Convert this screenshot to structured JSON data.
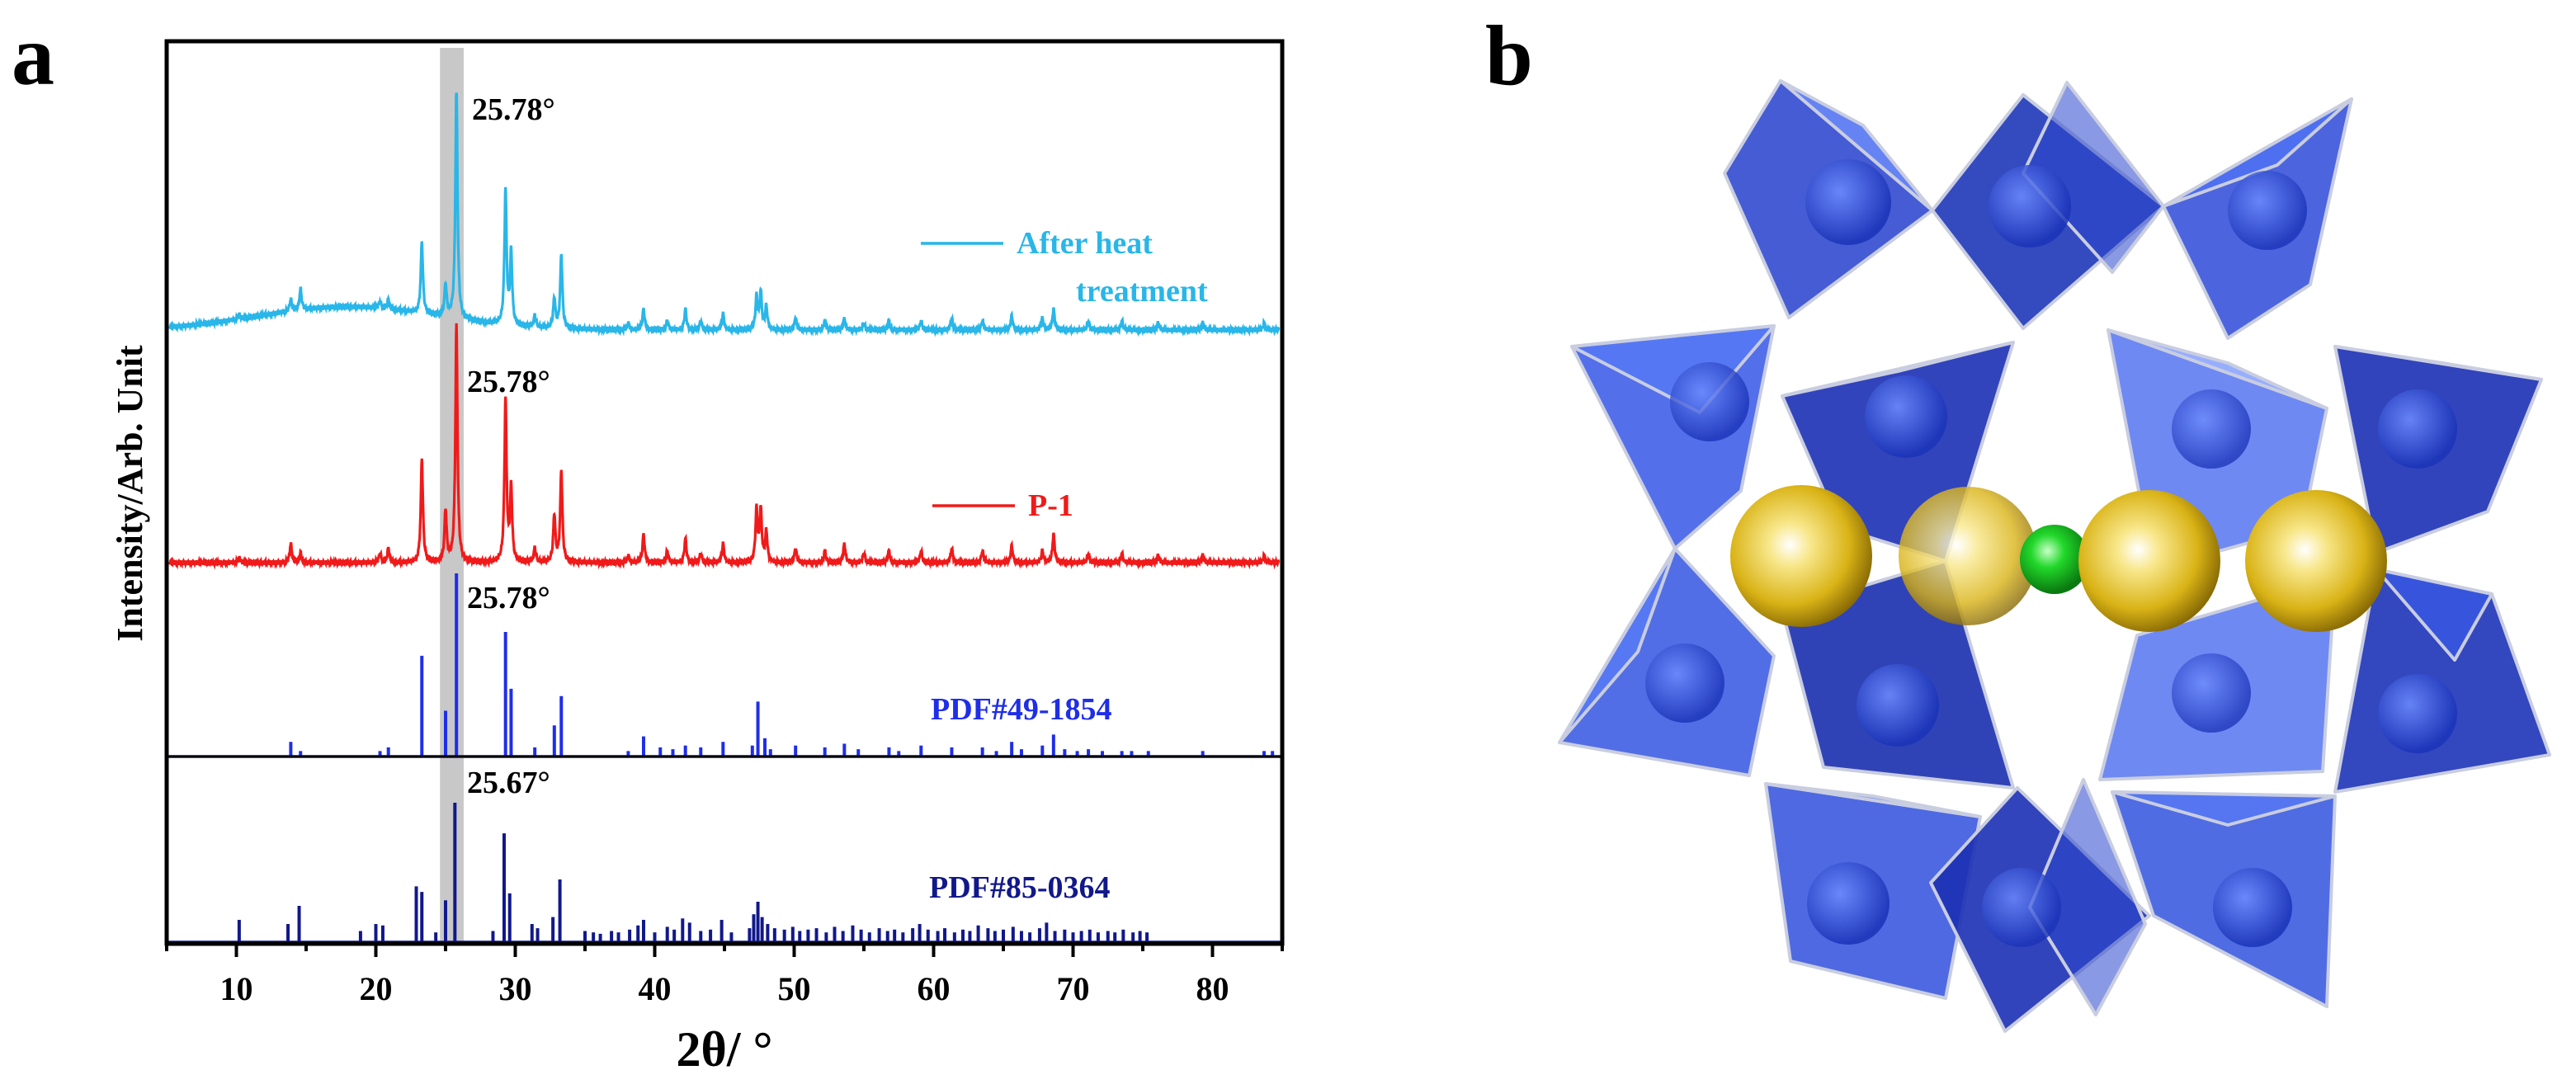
{
  "panel_a_label": "a",
  "panel_b_label": "b",
  "chart_data": {
    "type": "line",
    "title": "",
    "xlabel": "2θ/ °",
    "ylabel": "Intensity/Arb. Unit",
    "xlim": [
      5,
      85
    ],
    "xticks": [
      10,
      20,
      30,
      40,
      50,
      60,
      70,
      80
    ],
    "highlight_band": [
      24.6,
      26.3
    ],
    "series": [
      {
        "name": "After heat treatment",
        "legend_lines": [
          "After heat",
          "treatment"
        ],
        "color": "#29b6e8",
        "kind": "pattern",
        "baseline": 0.1,
        "peak_x": [
          10.2,
          13.9,
          14.6,
          20.3,
          20.9,
          23.3,
          25.0,
          25.78,
          29.3,
          29.7,
          31.4,
          32.8,
          33.3,
          38.1,
          39.2,
          40.9,
          42.2,
          43.3,
          44.9,
          47.3,
          47.6,
          48.0,
          50.1,
          52.2,
          53.6,
          55.0,
          56.8,
          59.1,
          61.3,
          63.5,
          65.6,
          67.8,
          68.6,
          71.1,
          73.5,
          76.1,
          79.3,
          83.7
        ],
        "peak_y": [
          0.02,
          0.05,
          0.09,
          0.03,
          0.04,
          0.31,
          0.14,
          1.0,
          0.58,
          0.31,
          0.05,
          0.13,
          0.32,
          0.03,
          0.09,
          0.04,
          0.09,
          0.04,
          0.07,
          0.14,
          0.16,
          0.1,
          0.05,
          0.04,
          0.05,
          0.03,
          0.04,
          0.04,
          0.05,
          0.04,
          0.06,
          0.05,
          0.09,
          0.04,
          0.04,
          0.03,
          0.03,
          0.03
        ],
        "annotation": "25.78°"
      },
      {
        "name": "P-1",
        "legend_lines": [
          "P-1"
        ],
        "color": "#f01a1a",
        "kind": "pattern",
        "baseline": 0.0,
        "peak_x": [
          10.2,
          13.9,
          14.6,
          20.3,
          20.9,
          23.3,
          25.0,
          25.78,
          29.3,
          29.7,
          31.4,
          32.8,
          33.3,
          38.1,
          39.2,
          40.9,
          42.2,
          43.3,
          44.9,
          47.3,
          47.6,
          48.0,
          50.1,
          52.2,
          53.6,
          55.0,
          56.8,
          59.1,
          61.3,
          63.5,
          65.6,
          67.8,
          68.6,
          71.1,
          73.5,
          76.1,
          79.3,
          83.7
        ],
        "peak_y": [
          0.02,
          0.08,
          0.04,
          0.04,
          0.06,
          0.44,
          0.22,
          1.0,
          0.69,
          0.31,
          0.06,
          0.2,
          0.39,
          0.03,
          0.12,
          0.05,
          0.1,
          0.04,
          0.08,
          0.22,
          0.22,
          0.13,
          0.06,
          0.05,
          0.08,
          0.04,
          0.05,
          0.05,
          0.06,
          0.05,
          0.07,
          0.05,
          0.12,
          0.04,
          0.04,
          0.03,
          0.03,
          0.03
        ],
        "annotation": "25.78°"
      },
      {
        "name": "PDF#49-1854",
        "legend_lines": [
          "PDF#49-1854"
        ],
        "color": "#1f2ee8",
        "kind": "sticks",
        "peak_x": [
          13.9,
          14.6,
          20.3,
          20.9,
          23.3,
          25.0,
          25.78,
          29.3,
          29.7,
          31.4,
          32.8,
          33.3,
          38.1,
          39.2,
          40.4,
          41.3,
          42.2,
          43.3,
          44.9,
          47.0,
          47.4,
          47.9,
          48.3,
          50.1,
          52.2,
          53.6,
          54.6,
          56.8,
          57.5,
          59.1,
          61.3,
          63.5,
          64.5,
          65.6,
          66.3,
          67.8,
          68.6,
          69.4,
          70.3,
          71.1,
          72.1,
          73.5,
          74.2,
          75.4,
          79.3,
          83.7,
          84.3
        ],
        "peak_y": [
          0.08,
          0.03,
          0.03,
          0.05,
          0.55,
          0.25,
          1.0,
          0.68,
          0.37,
          0.05,
          0.17,
          0.33,
          0.03,
          0.11,
          0.05,
          0.04,
          0.06,
          0.05,
          0.08,
          0.06,
          0.3,
          0.1,
          0.04,
          0.06,
          0.05,
          0.07,
          0.04,
          0.05,
          0.03,
          0.06,
          0.05,
          0.05,
          0.03,
          0.08,
          0.04,
          0.06,
          0.12,
          0.04,
          0.03,
          0.04,
          0.03,
          0.03,
          0.03,
          0.03,
          0.03,
          0.03,
          0.03
        ],
        "annotation": "25.78°"
      },
      {
        "name": "PDF#85-0364",
        "legend_lines": [
          "PDF#85-0364"
        ],
        "color": "#11188a",
        "kind": "sticks",
        "peak_x": [
          10.2,
          13.7,
          14.5,
          18.9,
          20.0,
          20.5,
          22.9,
          23.3,
          24.3,
          25.0,
          25.67,
          28.4,
          29.2,
          29.6,
          31.2,
          31.6,
          32.7,
          33.2,
          35.0,
          35.6,
          36.1,
          36.9,
          37.4,
          38.2,
          38.8,
          39.2,
          40.0,
          40.9,
          41.4,
          42.0,
          42.5,
          43.3,
          44.0,
          44.8,
          45.5,
          46.8,
          47.1,
          47.4,
          47.7,
          48.1,
          48.6,
          49.3,
          49.9,
          50.4,
          51.0,
          51.6,
          52.3,
          52.9,
          53.5,
          54.2,
          54.8,
          55.4,
          56.1,
          56.7,
          57.2,
          57.8,
          58.5,
          59.0,
          59.6,
          60.3,
          60.8,
          61.5,
          62.1,
          62.6,
          63.2,
          63.9,
          64.4,
          65.0,
          65.7,
          66.3,
          66.9,
          67.6,
          68.1,
          68.7,
          69.4,
          70.0,
          70.6,
          71.2,
          71.8,
          72.5,
          73.0,
          73.6,
          74.3,
          74.8,
          75.3
        ],
        "peak_y": [
          0.16,
          0.13,
          0.26,
          0.08,
          0.13,
          0.12,
          0.4,
          0.36,
          0.07,
          0.3,
          1.0,
          0.08,
          0.78,
          0.35,
          0.13,
          0.1,
          0.18,
          0.45,
          0.08,
          0.07,
          0.06,
          0.08,
          0.07,
          0.09,
          0.12,
          0.16,
          0.07,
          0.11,
          0.09,
          0.17,
          0.14,
          0.08,
          0.09,
          0.16,
          0.07,
          0.1,
          0.2,
          0.29,
          0.18,
          0.13,
          0.1,
          0.09,
          0.11,
          0.08,
          0.09,
          0.1,
          0.07,
          0.11,
          0.08,
          0.12,
          0.09,
          0.07,
          0.1,
          0.08,
          0.09,
          0.07,
          0.1,
          0.13,
          0.09,
          0.08,
          0.1,
          0.07,
          0.09,
          0.08,
          0.12,
          0.1,
          0.08,
          0.09,
          0.11,
          0.08,
          0.07,
          0.1,
          0.14,
          0.08,
          0.09,
          0.07,
          0.08,
          0.09,
          0.07,
          0.08,
          0.07,
          0.09,
          0.07,
          0.08,
          0.07
        ],
        "annotation": "25.67°"
      }
    ]
  },
  "structure": {
    "polyhedra_color": "#2a4fd6",
    "large_atom_color": "#e8c21a",
    "small_atom_color": "#12c41a"
  }
}
